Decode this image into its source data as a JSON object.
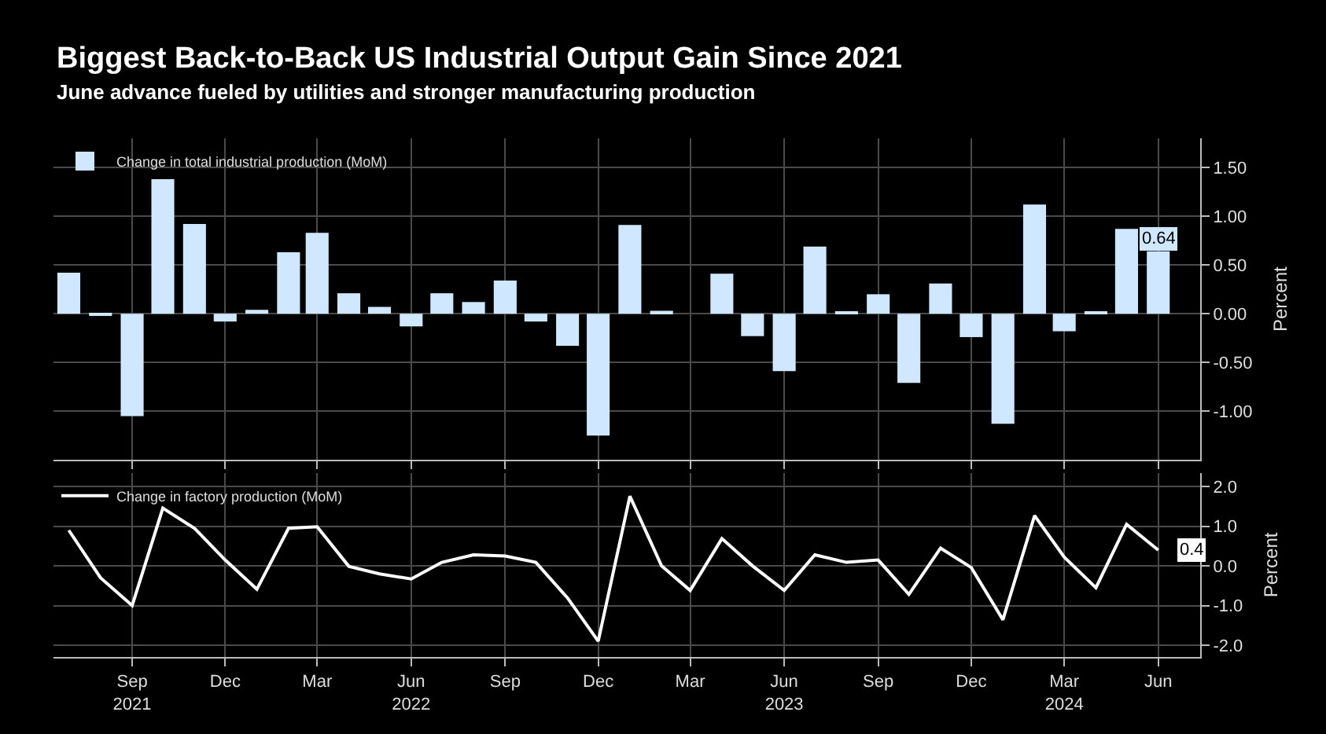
{
  "chart_data": [
    {
      "type": "bar",
      "title": "Biggest Back-to-Back US Industrial Output Gain Since 2021",
      "subtitle": "June advance fueled by utilities and stronger manufacturing production",
      "ylabel": "Percent",
      "x": [
        "2021-07",
        "2021-08",
        "2021-09",
        "2021-10",
        "2021-11",
        "2021-12",
        "2022-01",
        "2022-02",
        "2022-03",
        "2022-04",
        "2022-05",
        "2022-06",
        "2022-07",
        "2022-08",
        "2022-09",
        "2022-10",
        "2022-11",
        "2022-12",
        "2023-01",
        "2023-02",
        "2023-03",
        "2023-04",
        "2023-05",
        "2023-06",
        "2023-07",
        "2023-08",
        "2023-09",
        "2023-10",
        "2023-11",
        "2023-12",
        "2024-01",
        "2024-02",
        "2024-03",
        "2024-04",
        "2024-05",
        "2024-06"
      ],
      "series": [
        {
          "name": "Change in total industrial production (MoM)",
          "color": "#cfe8ff",
          "values": [
            0.42,
            -0.02,
            -1.05,
            1.38,
            0.92,
            -0.08,
            0.04,
            0.63,
            0.83,
            0.21,
            0.07,
            -0.13,
            0.21,
            0.12,
            0.34,
            -0.08,
            -0.33,
            -1.25,
            0.91,
            0.03,
            0.0,
            0.41,
            -0.23,
            -0.59,
            0.69,
            0.01,
            0.2,
            -0.71,
            0.31,
            -0.24,
            -1.13,
            1.12,
            -0.18,
            0.02,
            0.87,
            0.64
          ],
          "value_labels": [
            null,
            null,
            null,
            null,
            null,
            null,
            null,
            null,
            null,
            null,
            null,
            null,
            null,
            null,
            null,
            null,
            null,
            null,
            null,
            null,
            null,
            null,
            null,
            null,
            null,
            null,
            null,
            null,
            null,
            null,
            null,
            null,
            null,
            null,
            null,
            "0.64"
          ]
        }
      ],
      "xlim": [
        "2021-06-16",
        "2024-07-12"
      ],
      "ylim": [
        -1.5,
        1.8
      ],
      "yticks": [
        {
          "value": -1.0,
          "label": "-1.00"
        },
        {
          "value": -0.5,
          "label": "-0.50"
        },
        {
          "value": 0,
          "label": "0.00"
        },
        {
          "value": 0.5,
          "label": "0.50"
        },
        {
          "value": 1.0,
          "label": "1.00"
        },
        {
          "value": 1.5,
          "label": "1.50"
        }
      ],
      "grid": true,
      "legend": "top left",
      "tick_labels": "y"
    },
    {
      "type": "line",
      "ylabel": "Percent",
      "x": [
        "2021-07",
        "2021-08",
        "2021-09",
        "2021-10",
        "2021-11",
        "2021-12",
        "2022-01",
        "2022-02",
        "2022-03",
        "2022-04",
        "2022-05",
        "2022-06",
        "2022-07",
        "2022-08",
        "2022-09",
        "2022-10",
        "2022-11",
        "2022-12",
        "2023-01",
        "2023-02",
        "2023-03",
        "2023-04",
        "2023-05",
        "2023-06",
        "2023-07",
        "2023-08",
        "2023-09",
        "2023-10",
        "2023-11",
        "2023-12",
        "2024-01",
        "2024-02",
        "2024-03",
        "2024-04",
        "2024-05",
        "2024-06"
      ],
      "series": [
        {
          "name": "Change in factory production (MoM)",
          "color": "#ffffff",
          "values": [
            0.9,
            -0.3,
            -1.0,
            1.46,
            0.95,
            0.15,
            -0.59,
            0.95,
            0.99,
            -0.01,
            -0.2,
            -0.33,
            0.09,
            0.28,
            0.25,
            0.09,
            -0.81,
            -1.9,
            1.76,
            0.0,
            -0.62,
            0.69,
            0.0,
            -0.62,
            0.28,
            0.09,
            0.15,
            -0.72,
            0.45,
            -0.04,
            -1.36,
            1.27,
            0.22,
            -0.55,
            1.05,
            0.4
          ],
          "value_labels": [
            null,
            null,
            null,
            null,
            null,
            null,
            null,
            null,
            null,
            null,
            null,
            null,
            null,
            null,
            null,
            null,
            null,
            null,
            null,
            null,
            null,
            null,
            null,
            null,
            null,
            null,
            null,
            null,
            null,
            null,
            null,
            null,
            null,
            null,
            null,
            "0.4"
          ]
        }
      ],
      "xlim": [
        "2021-06-16",
        "2024-07-12"
      ],
      "ylim": [
        -2.3,
        2.35
      ],
      "xticks": [
        {
          "value": "2021-09",
          "label": "Sep\n2021"
        },
        {
          "value": "2021-12",
          "label": "Dec"
        },
        {
          "value": "2022-03",
          "label": "Mar"
        },
        {
          "value": "2022-06",
          "label": "Jun\n2022"
        },
        {
          "value": "2022-09",
          "label": "Sep"
        },
        {
          "value": "2022-12",
          "label": "Dec"
        },
        {
          "value": "2023-03",
          "label": "Mar"
        },
        {
          "value": "2023-06",
          "label": "Jun\n2023"
        },
        {
          "value": "2023-09",
          "label": "Sep"
        },
        {
          "value": "2023-12",
          "label": "Dec"
        },
        {
          "value": "2024-03",
          "label": "Mar\n2024"
        },
        {
          "value": "2024-06",
          "label": "Jun"
        }
      ],
      "yticks": [
        {
          "value": -2,
          "label": "-2.0"
        },
        {
          "value": -1,
          "label": "-1.0"
        },
        {
          "value": 0,
          "label": "0.0"
        },
        {
          "value": 1,
          "label": "1.0"
        },
        {
          "value": 2,
          "label": "2.0"
        }
      ],
      "grid": true,
      "legend": "top left",
      "marker": "none",
      "line_style": "solid"
    }
  ]
}
